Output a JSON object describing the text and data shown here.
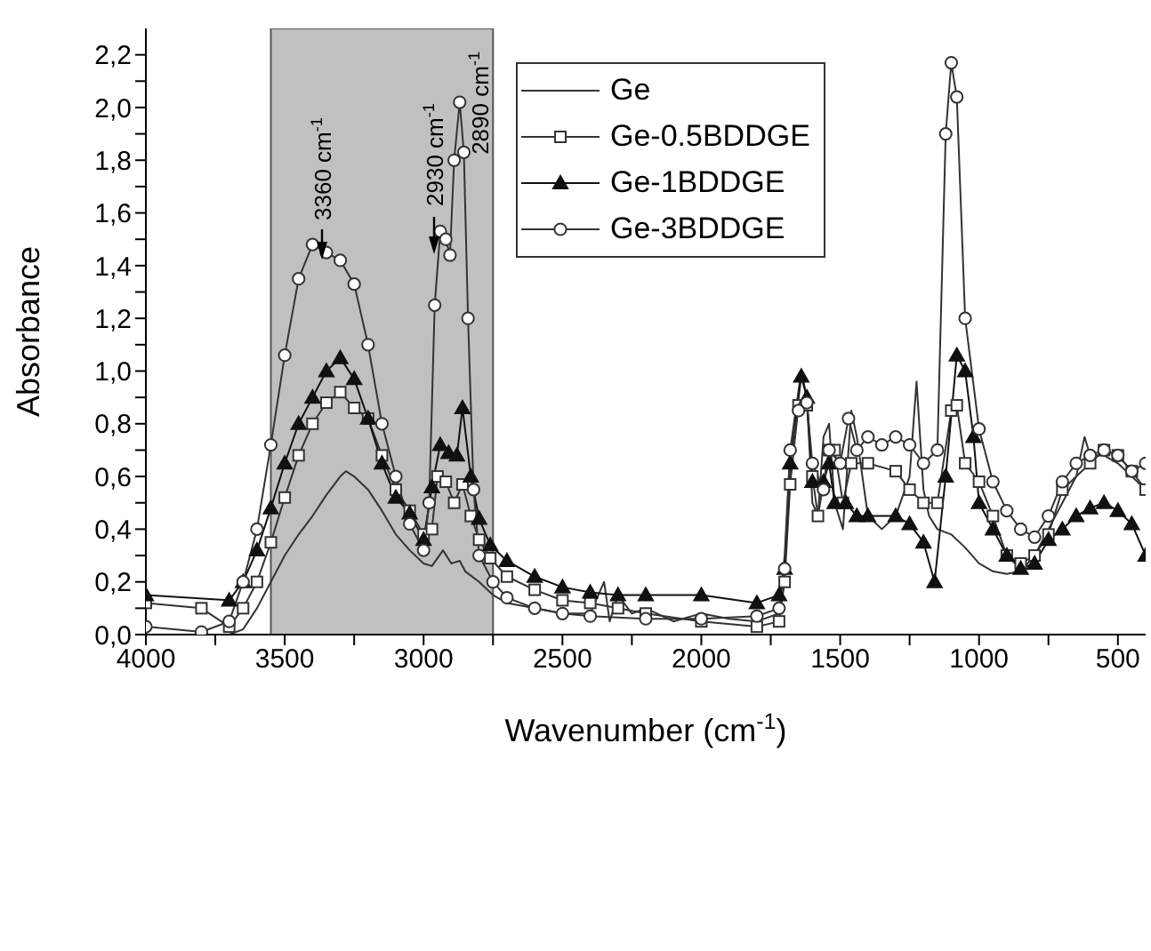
{
  "chart_data": {
    "type": "line",
    "xlabel": "Wavenumber (cm$^{-1}$)",
    "ylabel": "Absorbance",
    "xlim": [
      4000,
      400
    ],
    "ylim": [
      0,
      2.3
    ],
    "xticks": [
      4000,
      {
        "value": 3750,
        "label": null
      },
      3500,
      {
        "value": 3250,
        "label": null
      },
      3000,
      {
        "value": 2750,
        "label": null
      },
      2500,
      {
        "value": 2250,
        "label": null
      },
      2000,
      {
        "value": 1750,
        "label": null
      },
      1500,
      {
        "value": 1250,
        "label": null
      },
      1000,
      {
        "value": 750,
        "label": null
      },
      500
    ],
    "yticks": [
      {
        "value": 0,
        "label": "0,0"
      },
      {
        "value": 0.1,
        "label": null
      },
      {
        "value": 0.2,
        "label": "0,2"
      },
      {
        "value": 0.3,
        "label": null
      },
      {
        "value": 0.4,
        "label": "0,4"
      },
      {
        "value": 0.5,
        "label": null
      },
      {
        "value": 0.6,
        "label": "0,6"
      },
      {
        "value": 0.7,
        "label": null
      },
      {
        "value": 0.8,
        "label": "0,8"
      },
      {
        "value": 0.9,
        "label": null
      },
      {
        "value": 1.0,
        "label": "1,0"
      },
      {
        "value": 1.1,
        "label": null
      },
      {
        "value": 1.2,
        "label": "1,2"
      },
      {
        "value": 1.3,
        "label": null
      },
      {
        "value": 1.4,
        "label": "1,4"
      },
      {
        "value": 1.5,
        "label": null
      },
      {
        "value": 1.6,
        "label": "1,6"
      },
      {
        "value": 1.7,
        "label": null
      },
      {
        "value": 1.8,
        "label": "1,8"
      },
      {
        "value": 1.9,
        "label": null
      },
      {
        "value": 2.0,
        "label": "2,0"
      },
      {
        "value": 2.1,
        "label": null
      },
      {
        "value": 2.2,
        "label": "2,2"
      }
    ],
    "legend": "top right",
    "line_style": "solid",
    "bands": [
      {
        "axis": "x",
        "from": 3550,
        "to": 2750,
        "color": "#c0c0c0"
      }
    ],
    "annotations": [
      "3360 cm$^{-1}$",
      "2930 cm$^{-1}$",
      {
        "text": "2890 cm$^{-1}$",
        "x": 2870,
        "y": 2.02
      }
    ],
    "series": [
      {
        "name": "Ge",
        "color": "#333333",
        "marker": "none",
        "x": [
          4000,
          3700,
          3650,
          3600,
          3550,
          3500,
          3450,
          3400,
          3350,
          3300,
          3280,
          3250,
          3200,
          3150,
          3100,
          3050,
          3000,
          2970,
          2930,
          2900,
          2870,
          2850,
          2800,
          2750,
          2700,
          2600,
          2500,
          2400,
          2350,
          2330,
          2300,
          2250,
          2200,
          2100,
          2000,
          1900,
          1800,
          1720,
          1700,
          1680,
          1640,
          1620,
          1600,
          1580,
          1560,
          1540,
          1520,
          1490,
          1460,
          1440,
          1400,
          1350,
          1300,
          1250,
          1225,
          1200,
          1180,
          1150,
          1100,
          1050,
          1000,
          950,
          900,
          850,
          800,
          750,
          700,
          650,
          620,
          600,
          550,
          500,
          450,
          400
        ],
        "values": [
          0.0,
          0.0,
          0.02,
          0.1,
          0.2,
          0.3,
          0.38,
          0.45,
          0.53,
          0.6,
          0.62,
          0.6,
          0.55,
          0.47,
          0.38,
          0.32,
          0.27,
          0.26,
          0.32,
          0.27,
          0.28,
          0.24,
          0.2,
          0.15,
          0.12,
          0.1,
          0.08,
          0.08,
          0.2,
          0.05,
          0.15,
          0.08,
          0.1,
          0.05,
          0.08,
          0.06,
          0.05,
          0.08,
          0.3,
          0.7,
          1.0,
          0.9,
          0.5,
          0.45,
          0.75,
          0.8,
          0.5,
          0.4,
          0.85,
          0.75,
          0.45,
          0.4,
          0.45,
          0.6,
          0.96,
          0.55,
          0.45,
          0.4,
          0.38,
          0.33,
          0.27,
          0.24,
          0.23,
          0.24,
          0.3,
          0.4,
          0.5,
          0.6,
          0.75,
          0.68,
          0.68,
          0.65,
          0.6,
          0.55
        ]
      },
      {
        "name": "Ge-0.5BDDGE",
        "color": "#333333",
        "marker": "square",
        "x": [
          4000,
          3800,
          3700,
          3650,
          3600,
          3550,
          3500,
          3450,
          3400,
          3350,
          3300,
          3250,
          3200,
          3150,
          3100,
          3050,
          3000,
          2970,
          2950,
          2920,
          2890,
          2860,
          2830,
          2800,
          2760,
          2700,
          2600,
          2500,
          2400,
          2300,
          2200,
          2000,
          1800,
          1720,
          1700,
          1680,
          1650,
          1620,
          1600,
          1580,
          1540,
          1520,
          1490,
          1460,
          1400,
          1300,
          1250,
          1200,
          1150,
          1100,
          1080,
          1050,
          1000,
          950,
          900,
          850,
          800,
          750,
          700,
          600,
          550,
          500,
          450,
          400
        ],
        "values": [
          0.12,
          0.1,
          0.03,
          0.1,
          0.2,
          0.35,
          0.52,
          0.68,
          0.8,
          0.88,
          0.92,
          0.86,
          0.82,
          0.68,
          0.55,
          0.47,
          0.38,
          0.4,
          0.6,
          0.58,
          0.5,
          0.57,
          0.45,
          0.36,
          0.29,
          0.22,
          0.17,
          0.13,
          0.12,
          0.1,
          0.08,
          0.05,
          0.03,
          0.05,
          0.2,
          0.57,
          0.87,
          0.87,
          0.6,
          0.45,
          0.7,
          0.7,
          0.5,
          0.65,
          0.65,
          0.62,
          0.55,
          0.5,
          0.5,
          0.85,
          0.87,
          0.65,
          0.58,
          0.45,
          0.3,
          0.27,
          0.3,
          0.38,
          0.55,
          0.65,
          0.7,
          0.68,
          0.62,
          0.55
        ]
      },
      {
        "name": "Ge-1BDDGE",
        "color": "#111111",
        "marker": "triangle",
        "x": [
          4000,
          3700,
          3650,
          3600,
          3550,
          3500,
          3450,
          3400,
          3350,
          3300,
          3250,
          3200,
          3150,
          3100,
          3050,
          3000,
          2970,
          2940,
          2910,
          2880,
          2860,
          2830,
          2800,
          2760,
          2700,
          2600,
          2500,
          2400,
          2300,
          2200,
          2000,
          1800,
          1720,
          1700,
          1680,
          1640,
          1620,
          1600,
          1560,
          1540,
          1520,
          1480,
          1440,
          1400,
          1300,
          1250,
          1200,
          1160,
          1120,
          1080,
          1050,
          1020,
          1000,
          950,
          900,
          850,
          800,
          750,
          700,
          650,
          600,
          550,
          500,
          450,
          400
        ],
        "values": [
          0.15,
          0.13,
          0.2,
          0.32,
          0.48,
          0.65,
          0.8,
          0.9,
          1.0,
          1.05,
          0.97,
          0.82,
          0.65,
          0.52,
          0.46,
          0.36,
          0.56,
          0.72,
          0.69,
          0.68,
          0.86,
          0.6,
          0.44,
          0.34,
          0.28,
          0.22,
          0.18,
          0.16,
          0.15,
          0.15,
          0.15,
          0.12,
          0.15,
          0.25,
          0.65,
          0.98,
          0.9,
          0.58,
          0.58,
          0.65,
          0.5,
          0.5,
          0.45,
          0.45,
          0.45,
          0.42,
          0.35,
          0.2,
          0.6,
          1.06,
          1.0,
          0.75,
          0.5,
          0.4,
          0.3,
          0.25,
          0.27,
          0.36,
          0.4,
          0.45,
          0.48,
          0.5,
          0.47,
          0.42,
          0.3
        ]
      },
      {
        "name": "Ge-3BDDGE",
        "color": "#333333",
        "marker": "circle",
        "x": [
          4000,
          3800,
          3700,
          3650,
          3600,
          3550,
          3500,
          3450,
          3400,
          3350,
          3300,
          3250,
          3200,
          3150,
          3100,
          3050,
          3000,
          2980,
          2960,
          2940,
          2920,
          2905,
          2890,
          2870,
          2855,
          2840,
          2820,
          2800,
          2750,
          2700,
          2600,
          2500,
          2400,
          2200,
          2000,
          1800,
          1720,
          1700,
          1680,
          1650,
          1620,
          1600,
          1560,
          1540,
          1500,
          1470,
          1440,
          1400,
          1350,
          1300,
          1250,
          1200,
          1150,
          1120,
          1100,
          1080,
          1050,
          1000,
          950,
          900,
          850,
          800,
          750,
          700,
          650,
          600,
          550,
          500,
          450,
          400
        ],
        "values": [
          0.03,
          0.01,
          0.05,
          0.2,
          0.4,
          0.72,
          1.06,
          1.35,
          1.48,
          1.45,
          1.42,
          1.33,
          1.1,
          0.8,
          0.6,
          0.42,
          0.32,
          0.5,
          1.25,
          1.53,
          1.5,
          1.44,
          1.8,
          2.02,
          1.83,
          1.2,
          0.55,
          0.3,
          0.2,
          0.14,
          0.1,
          0.08,
          0.07,
          0.06,
          0.06,
          0.07,
          0.1,
          0.25,
          0.7,
          0.85,
          0.88,
          0.65,
          0.55,
          0.7,
          0.65,
          0.82,
          0.7,
          0.75,
          0.72,
          0.75,
          0.72,
          0.65,
          0.7,
          1.9,
          2.17,
          2.04,
          1.2,
          0.78,
          0.58,
          0.47,
          0.4,
          0.37,
          0.45,
          0.58,
          0.65,
          0.68,
          0.7,
          0.68,
          0.62,
          0.65
        ]
      }
    ]
  }
}
